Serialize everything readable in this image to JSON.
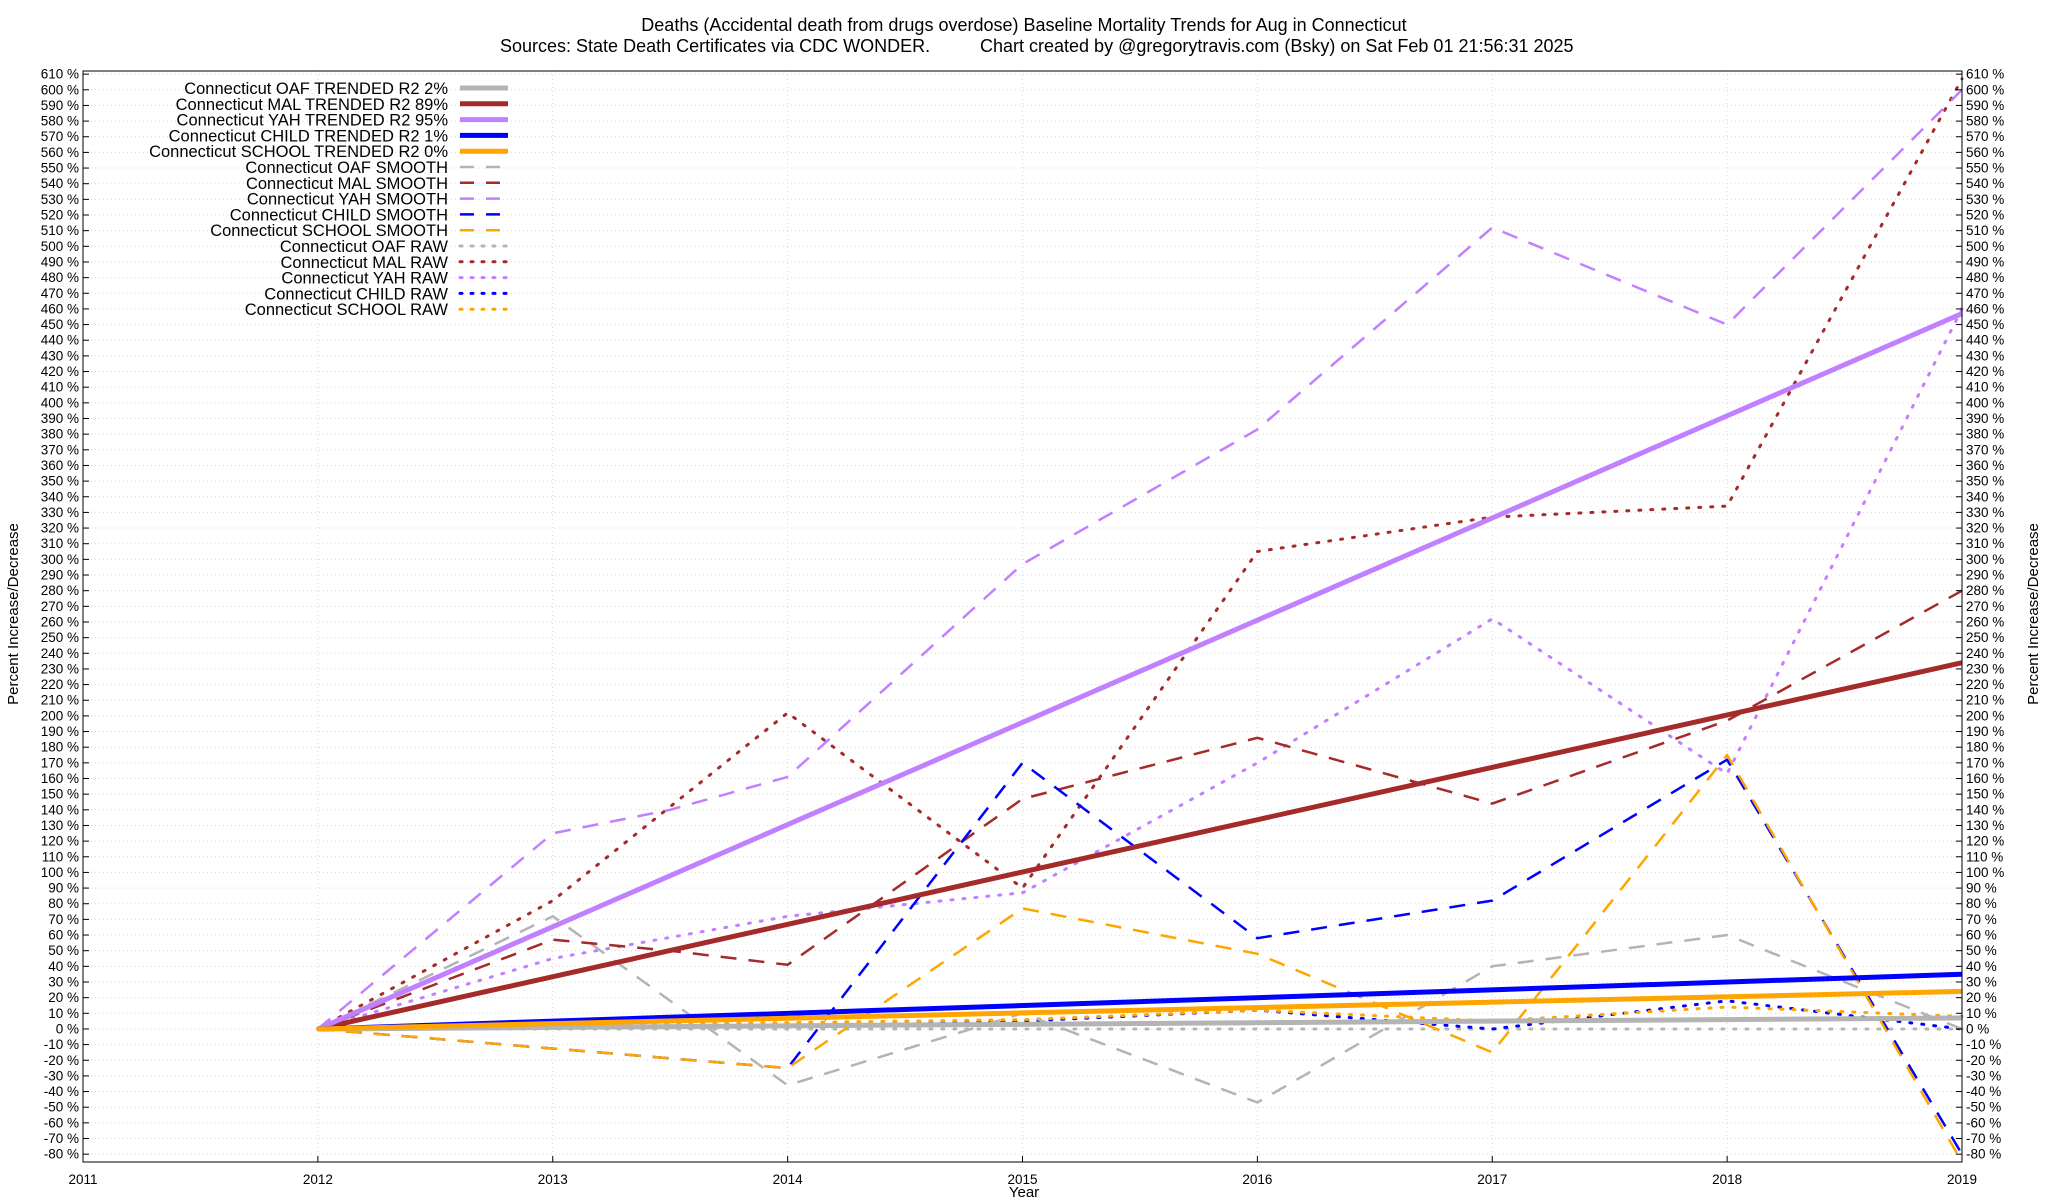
{
  "chart_data": {
    "type": "line",
    "title": "Deaths (Accidental death from drugs overdose)  Baseline Mortality Trends for Aug in Connecticut",
    "subtitle_left": "Sources: State Death Certificates via CDC WONDER.",
    "subtitle_right": "Chart created by @gregorytravis.com (Bsky) on Sat Feb 01 21:56:31 2025",
    "xlabel": "Year",
    "ylabel": "Percent Increase/Decrease",
    "xlim": [
      2011,
      2019
    ],
    "ylim": [
      -85,
      612
    ],
    "x_ticks": [
      "2011",
      "2012",
      "2013",
      "2014",
      "2015",
      "2016",
      "2017",
      "2018",
      "2019"
    ],
    "y_tick_step": 10,
    "y_tick_suffix": " %",
    "grid": true,
    "legend_position": "top-left",
    "series": [
      {
        "name": "Connecticut OAF TRENDED R2  2%",
        "color": "#b4b4b4",
        "style": "solid",
        "x": [
          2012,
          2019
        ],
        "y": [
          0,
          7
        ]
      },
      {
        "name": "Connecticut MAL TRENDED R2  89%",
        "color": "#a52a2a",
        "style": "solid",
        "x": [
          2012,
          2019
        ],
        "y": [
          0,
          234
        ]
      },
      {
        "name": "Connecticut YAH TRENDED R2  95%",
        "color": "#c080ff",
        "style": "solid",
        "x": [
          2012,
          2019
        ],
        "y": [
          0,
          457
        ]
      },
      {
        "name": "Connecticut CHILD TRENDED R2  1%",
        "color": "#0000ff",
        "style": "solid",
        "x": [
          2012,
          2019
        ],
        "y": [
          0,
          35
        ]
      },
      {
        "name": "Connecticut SCHOOL TRENDED R2  0%",
        "color": "#ffa500",
        "style": "solid",
        "x": [
          2012,
          2019
        ],
        "y": [
          0,
          24
        ]
      },
      {
        "name": "Connecticut OAF SMOOTH",
        "color": "#b4b4b4",
        "style": "dashed",
        "x": [
          2012,
          2013,
          2014,
          2015,
          2016,
          2017,
          2018,
          2019
        ],
        "y": [
          0,
          72,
          -36,
          10,
          -47,
          40,
          60,
          0
        ]
      },
      {
        "name": "Connecticut MAL SMOOTH",
        "color": "#a52a2a",
        "style": "dashed",
        "x": [
          2012,
          2013,
          2013.5,
          2014,
          2015,
          2016,
          2017,
          2018,
          2019
        ],
        "y": [
          0,
          57,
          50,
          41,
          147,
          186,
          144,
          197,
          280
        ]
      },
      {
        "name": "Connecticut YAH SMOOTH",
        "color": "#c080ff",
        "style": "dashed",
        "x": [
          2012,
          2013,
          2013.5,
          2014,
          2015,
          2016,
          2017,
          2018,
          2019
        ],
        "y": [
          0,
          125,
          140,
          161,
          297,
          383,
          512,
          450,
          600
        ]
      },
      {
        "name": "Connecticut CHILD SMOOTH",
        "color": "#0000ff",
        "style": "dashed",
        "x": [
          2012,
          2014,
          2015,
          2016,
          2017,
          2018,
          2019
        ],
        "y": [
          0,
          -25,
          170,
          58,
          82,
          172,
          -80
        ]
      },
      {
        "name": "Connecticut SCHOOL SMOOTH",
        "color": "#ffa500",
        "style": "dashed",
        "x": [
          2012,
          2014,
          2015,
          2016,
          2017,
          2018,
          2019
        ],
        "y": [
          0,
          -25,
          77,
          48,
          -15,
          175,
          -85
        ]
      },
      {
        "name": "Connecticut OAF RAW",
        "color": "#b4b4b4",
        "style": "dotted",
        "x": [
          2012,
          2013,
          2014,
          2015,
          2016,
          2017,
          2018,
          2019
        ],
        "y": [
          0,
          0,
          0,
          0,
          0,
          0,
          0,
          0
        ]
      },
      {
        "name": "Connecticut MAL RAW",
        "color": "#a52a2a",
        "style": "dotted",
        "x": [
          2012,
          2013,
          2014,
          2015,
          2016,
          2017,
          2018,
          2019
        ],
        "y": [
          0,
          82,
          202,
          90,
          305,
          327,
          334,
          607
        ]
      },
      {
        "name": "Connecticut YAH RAW",
        "color": "#c080ff",
        "style": "dotted",
        "x": [
          2012,
          2013,
          2014,
          2015,
          2016,
          2017,
          2018,
          2019
        ],
        "y": [
          0,
          45,
          72,
          87,
          170,
          262,
          163,
          460
        ]
      },
      {
        "name": "Connecticut CHILD RAW",
        "color": "#0000ff",
        "style": "dotted",
        "x": [
          2012,
          2013,
          2014,
          2015,
          2016,
          2017,
          2018,
          2019
        ],
        "y": [
          0,
          2,
          2,
          5,
          12,
          0,
          18,
          0
        ]
      },
      {
        "name": "Connecticut SCHOOL RAW",
        "color": "#ffa500",
        "style": "dotted",
        "x": [
          2012,
          2013,
          2014,
          2015,
          2016,
          2017,
          2018,
          2019
        ],
        "y": [
          0,
          2,
          4,
          6,
          12,
          5,
          14,
          8
        ]
      }
    ]
  }
}
